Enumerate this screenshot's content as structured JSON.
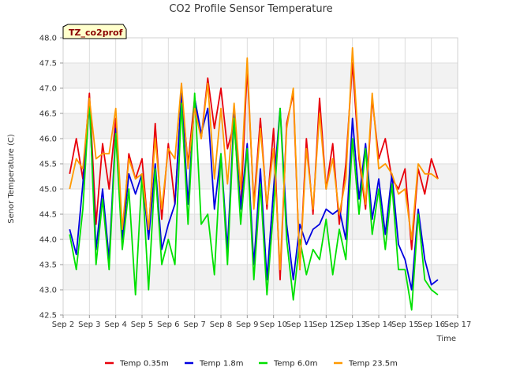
{
  "chart_data": {
    "type": "line",
    "title": "CO2 Profile Sensor Temperature",
    "xlabel": "Time",
    "ylabel": "Senor Temperature (C)",
    "site_badge": "TZ_co2prof",
    "ylim": [
      42.5,
      48.0
    ],
    "xlim": [
      2,
      17
    ],
    "grid": true,
    "legend_position": "bottom",
    "y_ticks": [
      "42.5",
      "43.0",
      "43.5",
      "44.0",
      "44.5",
      "45.0",
      "45.5",
      "46.0",
      "46.5",
      "47.0",
      "47.5",
      "48.0"
    ],
    "x_ticks": [
      "Sep 2",
      "Sep 3",
      "Sep 4",
      "Sep 5",
      "Sep 6",
      "Sep 7",
      "Sep 8",
      "Sep 9",
      "Sep 10",
      "Sep 11",
      "Sep 12",
      "Sep 13",
      "Sep 14",
      "Sep 15",
      "Sep 16",
      "Sep 17"
    ],
    "x_tick_values": [
      2,
      3,
      4,
      5,
      6,
      7,
      8,
      9,
      10,
      11,
      12,
      13,
      14,
      15,
      16,
      17
    ],
    "x": [
      2.25,
      2.5,
      2.75,
      3.0,
      3.25,
      3.5,
      3.75,
      4.0,
      4.25,
      4.5,
      4.75,
      5.0,
      5.25,
      5.5,
      5.75,
      6.0,
      6.25,
      6.5,
      6.75,
      7.0,
      7.25,
      7.5,
      7.75,
      8.0,
      8.25,
      8.5,
      8.75,
      9.0,
      9.25,
      9.5,
      9.75,
      10.0,
      10.25,
      10.5,
      10.75,
      11.0,
      11.25,
      11.5,
      11.75,
      12.0,
      12.25,
      12.5,
      12.75,
      13.0,
      13.25,
      13.5,
      13.75,
      14.0,
      14.25,
      14.5,
      14.75,
      15.0,
      15.25,
      15.5,
      15.75,
      16.0,
      16.25
    ],
    "series": [
      {
        "name": "Temp 0.35m",
        "color": "#e8000b",
        "values": [
          45.3,
          46.0,
          45.2,
          46.9,
          44.3,
          45.9,
          45.0,
          46.4,
          44.0,
          45.7,
          45.2,
          45.6,
          44.1,
          46.3,
          44.4,
          45.9,
          44.7,
          46.9,
          45.5,
          46.8,
          46.0,
          47.2,
          46.2,
          47.0,
          45.8,
          46.3,
          44.6,
          47.4,
          44.7,
          46.4,
          44.6,
          46.2,
          43.2,
          46.3,
          46.9,
          43.4,
          46.0,
          44.5,
          46.8,
          45.0,
          45.9,
          44.3,
          45.5,
          47.5,
          45.6,
          44.6,
          46.8,
          45.6,
          46.0,
          45.2,
          45.0,
          45.4,
          43.8,
          45.4,
          44.9,
          45.6,
          45.2
        ]
      },
      {
        "name": "Temp 1.8m",
        "color": "#0000e0",
        "values": [
          44.2,
          43.7,
          45.1,
          46.7,
          43.8,
          45.0,
          43.6,
          46.2,
          44.0,
          45.3,
          44.9,
          45.3,
          44.0,
          45.5,
          43.8,
          44.3,
          44.7,
          46.9,
          44.7,
          46.8,
          46.1,
          46.6,
          44.6,
          45.7,
          43.8,
          46.5,
          44.6,
          45.9,
          43.5,
          45.4,
          43.2,
          45.0,
          46.6,
          44.3,
          43.2,
          44.3,
          43.9,
          44.2,
          44.3,
          44.6,
          44.5,
          44.6,
          44.0,
          46.4,
          44.8,
          45.9,
          44.4,
          45.2,
          44.1,
          45.3,
          43.9,
          43.6,
          43.0,
          44.6,
          43.6,
          43.1,
          43.2
        ]
      },
      {
        "name": "Temp 6.0m",
        "color": "#00e000",
        "values": [
          44.1,
          43.4,
          44.6,
          46.8,
          43.5,
          44.8,
          43.4,
          46.1,
          43.8,
          45.0,
          42.9,
          45.3,
          43.0,
          45.4,
          43.5,
          44.0,
          43.5,
          46.7,
          44.3,
          46.9,
          44.3,
          44.5,
          43.3,
          45.7,
          43.5,
          46.4,
          44.3,
          45.8,
          43.2,
          45.1,
          42.9,
          44.6,
          46.6,
          44.0,
          42.8,
          44.0,
          43.3,
          43.8,
          43.6,
          44.4,
          43.3,
          44.2,
          43.6,
          46.0,
          44.5,
          45.8,
          44.1,
          45.0,
          43.8,
          45.1,
          43.4,
          43.4,
          42.6,
          44.5,
          43.2,
          43.0,
          42.9
        ]
      },
      {
        "name": "Temp 23.5m",
        "color": "#ff9900",
        "values": [
          45.0,
          45.6,
          45.4,
          46.8,
          45.6,
          45.7,
          45.7,
          46.6,
          44.2,
          45.6,
          45.2,
          45.3,
          44.2,
          46.0,
          44.6,
          45.8,
          45.6,
          47.1,
          45.4,
          46.6,
          46.0,
          47.1,
          45.2,
          46.6,
          45.1,
          46.7,
          45.0,
          47.6,
          44.6,
          46.2,
          44.7,
          45.8,
          43.4,
          46.2,
          47.0,
          43.4,
          45.8,
          44.6,
          46.5,
          45.0,
          45.6,
          44.5,
          45.2,
          47.8,
          45.7,
          44.7,
          46.9,
          45.4,
          45.5,
          45.3,
          44.9,
          45.0,
          44.0,
          45.5,
          45.3,
          45.3,
          45.2
        ]
      }
    ]
  }
}
